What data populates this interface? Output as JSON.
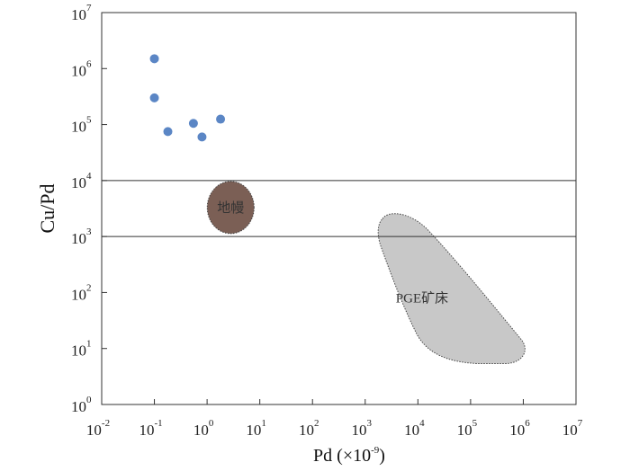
{
  "chart_data": {
    "type": "scatter",
    "title": "",
    "xlabel": "Pd (×10",
    "xlabel_exp": "-9",
    "xlabel_close": ")",
    "ylabel": "Cu/Pd",
    "x_scale": "log",
    "y_scale": "log",
    "xlim": [
      0.01,
      10000000
    ],
    "ylim": [
      1,
      10000000
    ],
    "x_ticks": [
      {
        "base": "10",
        "exp": "-2",
        "value": 0.01
      },
      {
        "base": "10",
        "exp": "-1",
        "value": 0.1
      },
      {
        "base": "10",
        "exp": "0",
        "value": 1
      },
      {
        "base": "10",
        "exp": "1",
        "value": 10
      },
      {
        "base": "10",
        "exp": "2",
        "value": 100
      },
      {
        "base": "10",
        "exp": "3",
        "value": 1000
      },
      {
        "base": "10",
        "exp": "4",
        "value": 10000
      },
      {
        "base": "10",
        "exp": "5",
        "value": 100000
      },
      {
        "base": "10",
        "exp": "6",
        "value": 1000000
      },
      {
        "base": "10",
        "exp": "7",
        "value": 10000000
      }
    ],
    "y_ticks": [
      {
        "base": "10",
        "exp": "0",
        "value": 1
      },
      {
        "base": "10",
        "exp": "1",
        "value": 10
      },
      {
        "base": "10",
        "exp": "2",
        "value": 100
      },
      {
        "base": "10",
        "exp": "3",
        "value": 1000
      },
      {
        "base": "10",
        "exp": "4",
        "value": 10000
      },
      {
        "base": "10",
        "exp": "5",
        "value": 100000
      },
      {
        "base": "10",
        "exp": "6",
        "value": 1000000
      },
      {
        "base": "10",
        "exp": "7",
        "value": 10000000
      }
    ],
    "reference_lines_y": [
      1000,
      10000
    ],
    "points": [
      {
        "x": 0.1,
        "y": 1500000
      },
      {
        "x": 0.1,
        "y": 300000
      },
      {
        "x": 0.18,
        "y": 75000
      },
      {
        "x": 0.55,
        "y": 105000
      },
      {
        "x": 0.8,
        "y": 60000
      },
      {
        "x": 1.8,
        "y": 125000
      }
    ],
    "regions": [
      {
        "label": "地幔",
        "center_x": 2.8,
        "center_y": 3300,
        "color": "#7b5f55",
        "border": "solid"
      },
      {
        "label": "PGE矿床",
        "center_x": 12000,
        "center_y": 80,
        "color": "#c8c8c8",
        "border": "dotted"
      }
    ],
    "marker_color": "#5b86c5",
    "grid": false,
    "legend": "none"
  }
}
